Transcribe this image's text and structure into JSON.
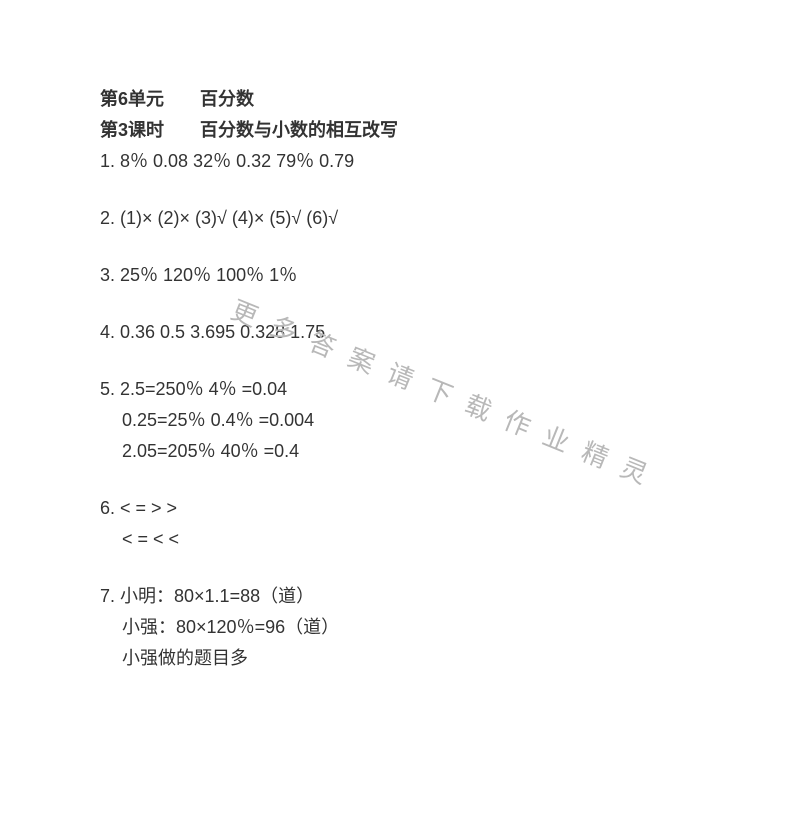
{
  "header1": "第6单元　　百分数",
  "header2": "第3课时　　百分数与小数的相互改写",
  "q1": "1. 8％   0.08     32％   0.32     79％    0.79",
  "q2": "2. (1)×    (2)×    (3)√    (4)×    (5)√    (6)√",
  "q3": "3. 25％    120％    100％    1％",
  "q4": "4. 0.36   0.5   3.695   0.328   1.75",
  "q5a": "5. 2.5=250％         4％ =0.04",
  "q5b": "0.25=25％         0.4％ =0.004",
  "q5c": "2.05=205％       40％ =0.4",
  "q6a": "6.  <    =    >     >",
  "q6b": "<     =     <     <",
  "q7a": "7. 小明：80×1.1=88（道）",
  "q7b": "小强：80×120％=96（道）",
  "q7c": "小强做的题目多",
  "watermark": "更多答案请下载作业精灵"
}
